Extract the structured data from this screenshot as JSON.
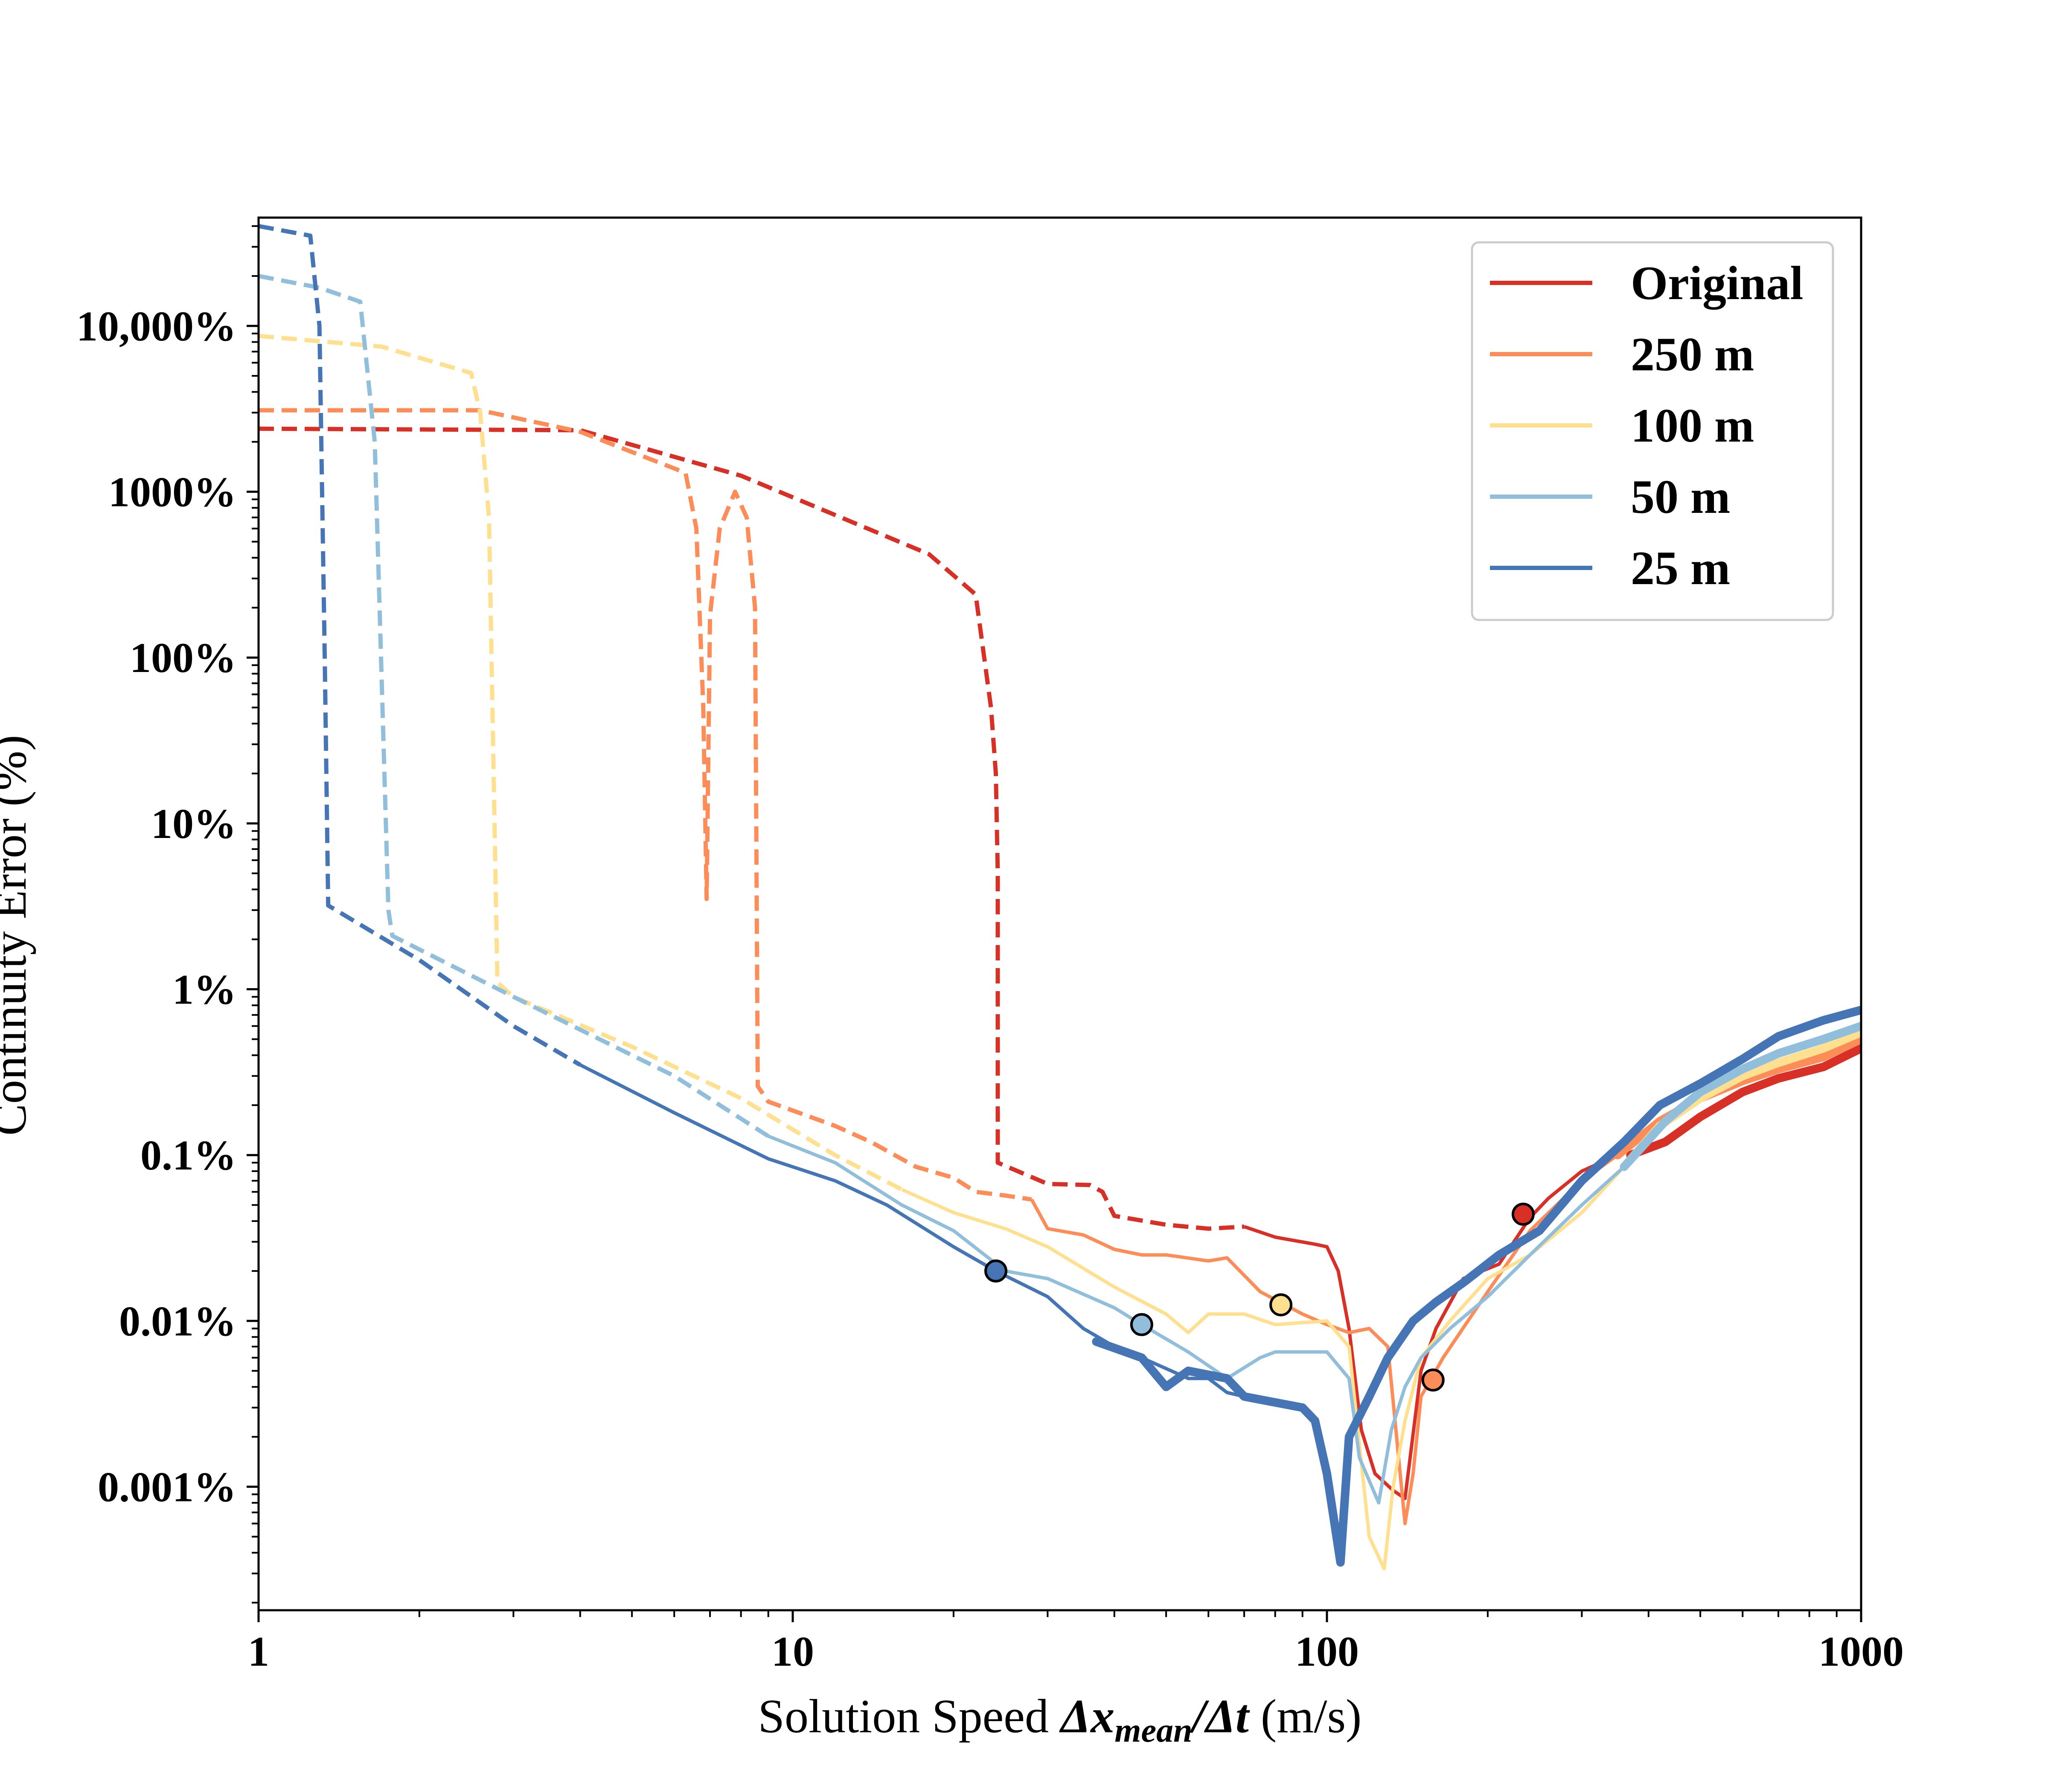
{
  "chart_data": {
    "type": "line",
    "xscale": "log",
    "yscale": "log",
    "xlim": [
      1,
      1000
    ],
    "ylim": [
      0.00018,
      45000
    ],
    "xlabel_parts": [
      "Solution Speed ",
      "Δx",
      "mean",
      "/Δt",
      " (m/s)"
    ],
    "ylabel": "Continuity Error (%)",
    "x_ticks": [
      {
        "value": 1,
        "label": "1"
      },
      {
        "value": 10,
        "label": "10"
      },
      {
        "value": 100,
        "label": "100"
      },
      {
        "value": 1000,
        "label": "1000"
      }
    ],
    "y_ticks": [
      {
        "value": 0.001,
        "label": "0.001%"
      },
      {
        "value": 0.01,
        "label": "0.01%"
      },
      {
        "value": 0.1,
        "label": "0.1%"
      },
      {
        "value": 1,
        "label": "1%"
      },
      {
        "value": 10,
        "label": "10%"
      },
      {
        "value": 100,
        "label": "100%"
      },
      {
        "value": 1000,
        "label": "1000%"
      },
      {
        "value": 10000,
        "label": "10,000%"
      }
    ],
    "grid": false,
    "legend_position": "top-right",
    "series": [
      {
        "name": "Original",
        "color": "#d73027",
        "dashed": [
          [
            1,
            2400
          ],
          [
            4,
            2350
          ],
          [
            8,
            1250
          ],
          [
            18,
            420
          ],
          [
            22,
            240
          ],
          [
            23.5,
            50
          ],
          [
            24,
            20
          ],
          [
            24.2,
            5
          ],
          [
            24.2,
            0.09
          ],
          [
            30,
            0.067
          ],
          [
            36,
            0.066
          ],
          [
            38,
            0.06
          ],
          [
            40,
            0.043
          ],
          [
            50,
            0.038
          ],
          [
            60,
            0.036
          ],
          [
            70,
            0.037
          ]
        ],
        "thin": [
          [
            70,
            0.037
          ],
          [
            80,
            0.032
          ],
          [
            95,
            0.029
          ],
          [
            100,
            0.028
          ],
          [
            105,
            0.02
          ],
          [
            110,
            0.009
          ],
          [
            116,
            0.0022
          ],
          [
            123,
            0.0012
          ],
          [
            133,
            0.00095
          ],
          [
            140,
            0.00085
          ],
          [
            150,
            0.005
          ],
          [
            160,
            0.009
          ],
          [
            180,
            0.018
          ],
          [
            210,
            0.022
          ],
          [
            240,
            0.042
          ],
          [
            260,
            0.055
          ],
          [
            300,
            0.08
          ],
          [
            350,
            0.1
          ]
        ],
        "thick": [
          [
            370,
            0.1
          ],
          [
            430,
            0.12
          ],
          [
            500,
            0.17
          ],
          [
            600,
            0.24
          ],
          [
            700,
            0.29
          ],
          [
            850,
            0.34
          ],
          [
            1000,
            0.44
          ]
        ],
        "marker": [
          233,
          0.044
        ]
      },
      {
        "name": "250 m",
        "color": "#fc8d59",
        "dashed": [
          [
            1,
            3100
          ],
          [
            2.6,
            3100
          ],
          [
            4,
            2300
          ],
          [
            6.3,
            1300
          ],
          [
            6.6,
            600
          ],
          [
            6.8,
            50
          ],
          [
            6.9,
            3.5
          ],
          [
            7,
            180
          ],
          [
            7.3,
            600
          ],
          [
            7.8,
            1000
          ],
          [
            8.2,
            700
          ],
          [
            8.5,
            200
          ],
          [
            8.6,
            0.26
          ],
          [
            9,
            0.21
          ],
          [
            12,
            0.15
          ],
          [
            14,
            0.12
          ],
          [
            17,
            0.085
          ],
          [
            20,
            0.073
          ],
          [
            22,
            0.06
          ],
          [
            25,
            0.057
          ],
          [
            28,
            0.054
          ]
        ],
        "thin": [
          [
            28,
            0.054
          ],
          [
            30,
            0.036
          ],
          [
            35,
            0.033
          ],
          [
            40,
            0.027
          ],
          [
            45,
            0.025
          ],
          [
            50,
            0.025
          ],
          [
            60,
            0.023
          ],
          [
            65,
            0.024
          ],
          [
            75,
            0.015
          ],
          [
            90,
            0.011
          ],
          [
            100,
            0.0095
          ],
          [
            110,
            0.0085
          ],
          [
            120,
            0.009
          ],
          [
            130,
            0.007
          ],
          [
            140,
            0.0006
          ],
          [
            145,
            0.0012
          ],
          [
            150,
            0.0035
          ],
          [
            165,
            0.006
          ],
          [
            200,
            0.015
          ],
          [
            240,
            0.035
          ],
          [
            300,
            0.07
          ],
          [
            350,
            0.1
          ]
        ],
        "thick": [
          [
            350,
            0.1
          ],
          [
            420,
            0.16
          ],
          [
            500,
            0.22
          ],
          [
            600,
            0.28
          ],
          [
            700,
            0.33
          ],
          [
            850,
            0.39
          ],
          [
            1000,
            0.5
          ]
        ],
        "marker": [
          158,
          0.0044
        ]
      },
      {
        "name": "100 m",
        "color": "#fee090",
        "dashed": [
          [
            1,
            8700
          ],
          [
            1.7,
            7500
          ],
          [
            2.5,
            5200
          ],
          [
            2.6,
            3000
          ],
          [
            2.7,
            700
          ],
          [
            2.8,
            1.1
          ],
          [
            3,
            0.9
          ],
          [
            5,
            0.45
          ],
          [
            8,
            0.22
          ],
          [
            12,
            0.1
          ],
          [
            16,
            0.062
          ]
        ],
        "thin": [
          [
            16,
            0.062
          ],
          [
            20,
            0.045
          ],
          [
            25,
            0.036
          ],
          [
            30,
            0.028
          ],
          [
            40,
            0.016
          ],
          [
            50,
            0.011
          ],
          [
            55,
            0.0085
          ],
          [
            60,
            0.011
          ],
          [
            70,
            0.011
          ],
          [
            80,
            0.0095
          ],
          [
            100,
            0.01
          ],
          [
            110,
            0.007
          ],
          [
            120,
            0.0005
          ],
          [
            128,
            0.00032
          ],
          [
            133,
            0.001
          ],
          [
            140,
            0.0025
          ],
          [
            150,
            0.006
          ],
          [
            170,
            0.01
          ],
          [
            200,
            0.018
          ],
          [
            240,
            0.025
          ],
          [
            300,
            0.045
          ],
          [
            360,
            0.085
          ]
        ],
        "thick": [
          [
            360,
            0.085
          ],
          [
            420,
            0.15
          ],
          [
            500,
            0.22
          ],
          [
            600,
            0.3
          ],
          [
            700,
            0.36
          ],
          [
            850,
            0.44
          ],
          [
            1000,
            0.55
          ]
        ],
        "marker": [
          82,
          0.0125
        ]
      },
      {
        "name": "50 m",
        "color": "#91bfdb",
        "dashed": [
          [
            1,
            20000
          ],
          [
            1.3,
            17000
          ],
          [
            1.55,
            14000
          ],
          [
            1.65,
            2000
          ],
          [
            1.75,
            3
          ],
          [
            1.78,
            2.1
          ],
          [
            3,
            0.9
          ],
          [
            6,
            0.3
          ],
          [
            9,
            0.13
          ]
        ],
        "thin": [
          [
            9,
            0.13
          ],
          [
            12,
            0.09
          ],
          [
            16,
            0.05
          ],
          [
            20,
            0.035
          ],
          [
            25,
            0.02
          ],
          [
            30,
            0.018
          ],
          [
            40,
            0.012
          ],
          [
            45,
            0.0095
          ],
          [
            55,
            0.0065
          ],
          [
            65,
            0.0045
          ],
          [
            75,
            0.006
          ],
          [
            80,
            0.0065
          ],
          [
            100,
            0.0065
          ],
          [
            110,
            0.0045
          ],
          [
            115,
            0.0015
          ],
          [
            125,
            0.0008
          ],
          [
            132,
            0.0022
          ],
          [
            140,
            0.004
          ],
          [
            150,
            0.006
          ],
          [
            170,
            0.009
          ],
          [
            200,
            0.014
          ],
          [
            240,
            0.025
          ],
          [
            300,
            0.05
          ],
          [
            360,
            0.085
          ]
        ],
        "thick": [
          [
            360,
            0.085
          ],
          [
            430,
            0.16
          ],
          [
            500,
            0.24
          ],
          [
            600,
            0.33
          ],
          [
            700,
            0.41
          ],
          [
            850,
            0.5
          ],
          [
            1000,
            0.6
          ]
        ],
        "marker": [
          45,
          0.0095
        ]
      },
      {
        "name": "25 m",
        "color": "#4575b4",
        "dashed": [
          [
            1,
            40000
          ],
          [
            1.25,
            35000
          ],
          [
            1.3,
            10000
          ],
          [
            1.33,
            100
          ],
          [
            1.35,
            3.2
          ],
          [
            2,
            1.5
          ],
          [
            3,
            0.6
          ],
          [
            4,
            0.35
          ]
        ],
        "thin": [
          [
            4,
            0.35
          ],
          [
            6,
            0.18
          ],
          [
            9,
            0.095
          ],
          [
            12,
            0.07
          ],
          [
            15,
            0.05
          ],
          [
            20,
            0.028
          ],
          [
            24,
            0.02
          ],
          [
            30,
            0.014
          ],
          [
            35,
            0.009
          ],
          [
            40,
            0.007
          ],
          [
            45,
            0.006
          ],
          [
            55,
            0.0045
          ],
          [
            60,
            0.0045
          ],
          [
            65,
            0.0037
          ],
          [
            70,
            0.0035
          ]
        ],
        "thick": [
          [
            37,
            0.0075
          ],
          [
            45,
            0.006
          ],
          [
            50,
            0.004
          ],
          [
            55,
            0.005
          ],
          [
            65,
            0.0045
          ],
          [
            70,
            0.0035
          ],
          [
            90,
            0.003
          ],
          [
            95,
            0.0025
          ],
          [
            100,
            0.0012
          ],
          [
            106,
            0.00035
          ],
          [
            110,
            0.002
          ],
          [
            120,
            0.0035
          ],
          [
            130,
            0.006
          ],
          [
            145,
            0.01
          ],
          [
            160,
            0.013
          ],
          [
            180,
            0.017
          ],
          [
            210,
            0.025
          ],
          [
            250,
            0.035
          ],
          [
            300,
            0.07
          ],
          [
            360,
            0.12
          ],
          [
            420,
            0.2
          ],
          [
            500,
            0.27
          ],
          [
            600,
            0.38
          ],
          [
            700,
            0.52
          ],
          [
            850,
            0.65
          ],
          [
            1000,
            0.75
          ]
        ],
        "marker": [
          24,
          0.02
        ]
      }
    ]
  }
}
